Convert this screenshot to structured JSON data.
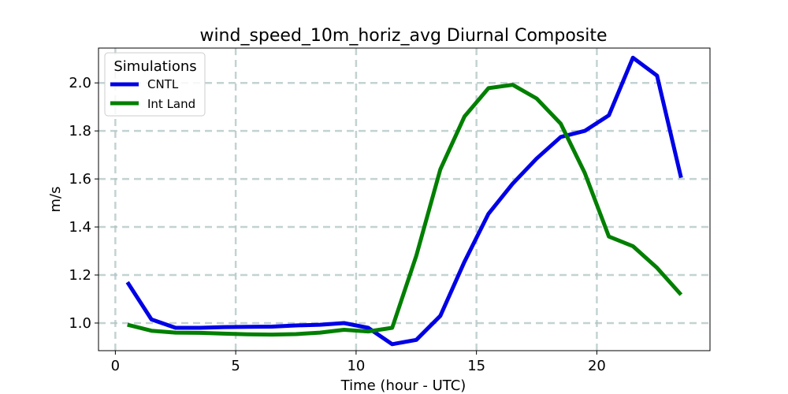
{
  "chart_data": {
    "type": "line",
    "title": "wind_speed_10m_horiz_avg Diurnal Composite",
    "xlabel": "Time (hour - UTC)",
    "ylabel": "m/s",
    "xlim": [
      -0.7,
      24.7
    ],
    "ylim": [
      0.885,
      2.145
    ],
    "xticks": [
      0,
      5,
      10,
      15,
      20
    ],
    "yticks": [
      1.0,
      1.2,
      1.4,
      1.6,
      1.8,
      2.0
    ],
    "xtick_labels": [
      "0",
      "5",
      "10",
      "15",
      "20"
    ],
    "ytick_labels": [
      "1.0",
      "1.2",
      "1.4",
      "1.6",
      "1.8",
      "2.0"
    ],
    "grid": true,
    "legend": {
      "title": "Simulations",
      "placement": "top-left"
    },
    "series": [
      {
        "name": "CNTL",
        "color": "#0000e6",
        "x": [
          0.5,
          1.5,
          2.5,
          3.5,
          4.5,
          5.5,
          6.5,
          7.5,
          8.5,
          9.5,
          10.5,
          11.5,
          12.5,
          13.5,
          14.5,
          15.5,
          16.5,
          17.5,
          18.5,
          19.5,
          20.5,
          21.5,
          22.5,
          23.5
        ],
        "values": [
          1.17,
          1.015,
          0.98,
          0.98,
          0.983,
          0.984,
          0.985,
          0.99,
          0.993,
          1.0,
          0.98,
          0.912,
          0.93,
          1.03,
          1.255,
          1.455,
          1.58,
          1.685,
          1.775,
          1.8,
          1.865,
          2.105,
          2.03,
          1.605
        ]
      },
      {
        "name": "Int Land",
        "color": "#007f00",
        "x": [
          0.5,
          1.5,
          2.5,
          3.5,
          4.5,
          5.5,
          6.5,
          7.5,
          8.5,
          9.5,
          10.5,
          11.5,
          12.5,
          13.5,
          14.5,
          15.5,
          16.5,
          17.5,
          18.5,
          19.5,
          20.5,
          21.5,
          22.5,
          23.5
        ],
        "values": [
          0.993,
          0.968,
          0.96,
          0.959,
          0.956,
          0.953,
          0.952,
          0.954,
          0.96,
          0.972,
          0.965,
          0.98,
          1.28,
          1.64,
          1.86,
          1.978,
          1.992,
          1.935,
          1.83,
          1.625,
          1.36,
          1.32,
          1.23,
          1.118
        ]
      }
    ]
  }
}
